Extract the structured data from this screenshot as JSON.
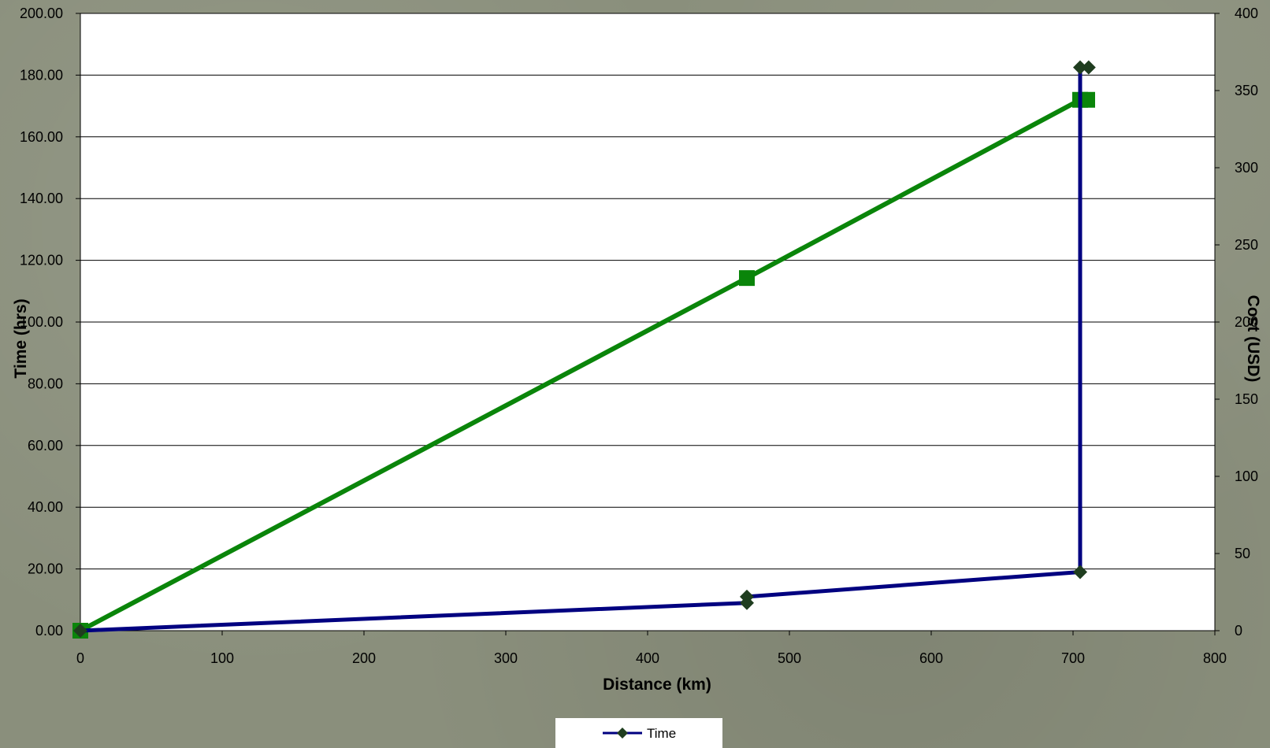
{
  "chart_data": {
    "type": "line",
    "title": "",
    "xlabel": "Distance (km)",
    "ylabel": "Time (hrs)",
    "y2label": "Cost (USD)",
    "xlim": [
      0,
      800
    ],
    "ylim": [
      0,
      200
    ],
    "y2lim": [
      0,
      400
    ],
    "x_ticks": [
      "0",
      "100",
      "200",
      "300",
      "400",
      "500",
      "600",
      "700",
      "800"
    ],
    "y_ticks": [
      "0.00",
      "20.00",
      "40.00",
      "60.00",
      "80.00",
      "100.00",
      "120.00",
      "140.00",
      "160.00",
      "180.00",
      "200.00"
    ],
    "y2_ticks": [
      "0",
      "50",
      "100",
      "150",
      "200",
      "250",
      "300",
      "350",
      "400"
    ],
    "grid": "horizontal",
    "legend_position": "bottom-center",
    "series": [
      {
        "name": "Time",
        "axis": "left",
        "color": "#000080",
        "marker": "diamond",
        "marker_color": "#1f3d1f",
        "points": [
          {
            "x": 0,
            "y": 0
          },
          {
            "x": 470,
            "y": 9
          },
          {
            "x": 470,
            "y": 11
          },
          {
            "x": 705,
            "y": 19
          },
          {
            "x": 705,
            "y": 182.5
          },
          {
            "x": 711,
            "y": 182.5
          }
        ]
      },
      {
        "axis": "right",
        "color": "#0a850a",
        "marker": "square",
        "marker_color": "#0a850a",
        "points": [
          {
            "x": 0,
            "y": 0
          },
          {
            "x": 470,
            "y": 228.5
          },
          {
            "x": 705,
            "y": 344
          },
          {
            "x": 710,
            "y": 344
          }
        ]
      }
    ],
    "legend": [
      "Time"
    ]
  }
}
